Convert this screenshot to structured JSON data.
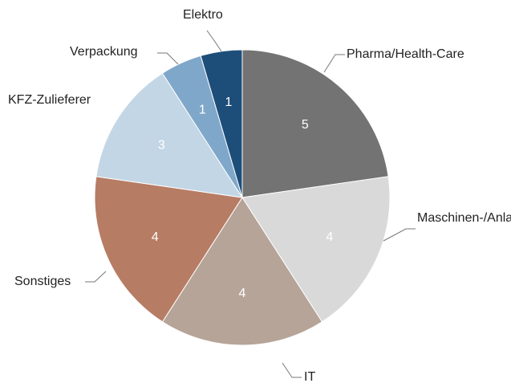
{
  "chart_data": {
    "type": "pie",
    "categories": [
      "Pharma/Health-Care",
      "Maschinen-/Anlagenbau",
      "IT",
      "Sonstiges",
      "KFZ-Zulieferer",
      "Verpackung",
      "Elektro"
    ],
    "values": [
      5,
      4,
      4,
      4,
      3,
      1,
      1
    ],
    "colors": [
      "#737373",
      "#d9d9d9",
      "#b6a498",
      "#b77c64",
      "#c3d6e5",
      "#7fa7ca",
      "#1d4e79"
    ]
  }
}
